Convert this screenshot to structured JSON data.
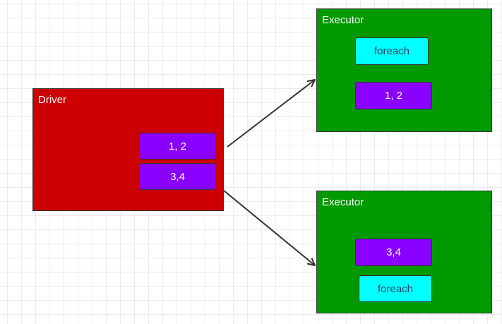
{
  "driver": {
    "label": "Driver",
    "partitions": [
      "1, 2",
      "3,4"
    ]
  },
  "executors": [
    {
      "label": "Executor",
      "operation": "foreach",
      "partition": "1, 2"
    },
    {
      "label": "Executor",
      "partition": "3,4",
      "operation": "foreach"
    }
  ],
  "colors": {
    "driver": "#cc0000",
    "executor": "#009900",
    "partition": "#8a00ff",
    "operation": "#00ffff",
    "arrow": "#333333"
  }
}
